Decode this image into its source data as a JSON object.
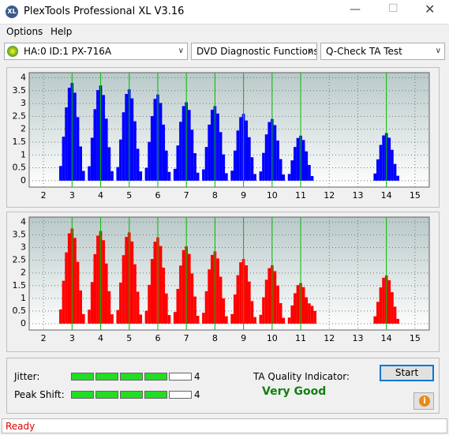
{
  "window": {
    "title": "PlexTools Professional XL V3.16"
  },
  "menu": [
    "Options",
    "Help"
  ],
  "toolbar": {
    "drive": "HA:0 ID:1  PX-716A",
    "function": "DVD Diagnostic Functions",
    "test": "Q-Check TA Test"
  },
  "chart_data": [
    {
      "type": "bar",
      "color": "#0000ff",
      "grid": true,
      "x": [
        2.5,
        2.6,
        2.7,
        2.8,
        2.9,
        3,
        3.1,
        3.2,
        3.3,
        3.4,
        3.5,
        3.6,
        3.7,
        3.8,
        3.9,
        4,
        4.1,
        4.2,
        4.3,
        4.4,
        4.5,
        4.6,
        4.7,
        4.8,
        4.9,
        5,
        5.1,
        5.2,
        5.3,
        5.4,
        5.5,
        5.6,
        5.7,
        5.8,
        5.9,
        6,
        6.1,
        6.2,
        6.3,
        6.4,
        6.5,
        6.6,
        6.7,
        6.8,
        6.9,
        7,
        7.1,
        7.2,
        7.3,
        7.4,
        7.5,
        7.6,
        7.7,
        7.8,
        7.9,
        8,
        8.1,
        8.2,
        8.3,
        8.4,
        8.5,
        8.6,
        8.7,
        8.8,
        8.9,
        9,
        9.1,
        9.2,
        9.3,
        9.4,
        9.5,
        9.6,
        9.7,
        9.8,
        9.9,
        10,
        10.1,
        10.2,
        10.3,
        10.4,
        10.5,
        10.6,
        10.7,
        10.8,
        10.9,
        11,
        11.1,
        11.2,
        11.3,
        11.4,
        11.5,
        13.5,
        13.6,
        13.7,
        13.8,
        13.9,
        14,
        14.1,
        14.2,
        14.3,
        14.4,
        14.5
      ],
      "values": [
        0,
        0.57,
        1.71,
        2.85,
        3.61,
        3.8,
        3.42,
        2.47,
        1.33,
        0.38,
        0,
        0.56,
        1.67,
        2.78,
        3.52,
        3.7,
        3.33,
        2.41,
        1.3,
        0.37,
        0,
        0.53,
        1.6,
        2.66,
        3.37,
        3.55,
        3.2,
        2.31,
        1.24,
        0.36,
        0,
        0.5,
        1.51,
        2.51,
        3.18,
        3.35,
        3.02,
        2.18,
        1.17,
        0.34,
        0,
        0.46,
        1.37,
        2.29,
        2.9,
        3.05,
        2.75,
        1.98,
        1.07,
        0.31,
        0,
        0.44,
        1.31,
        2.18,
        2.76,
        2.9,
        2.61,
        1.89,
        1.02,
        0.29,
        0,
        0.39,
        1.17,
        1.95,
        2.47,
        2.6,
        2.34,
        1.69,
        0.91,
        0.26,
        0,
        0.36,
        1.08,
        1.8,
        2.28,
        2.4,
        2.16,
        1.56,
        0.84,
        0.24,
        0,
        0.26,
        0.79,
        1.31,
        1.66,
        1.75,
        1.58,
        1.14,
        0.61,
        0.18,
        0,
        0,
        0.28,
        0.83,
        1.39,
        1.76,
        1.85,
        1.67,
        1.2,
        0.65,
        0.19,
        0
      ],
      "xlim": [
        1.5,
        15.5
      ],
      "xticks": [
        2,
        3,
        4,
        5,
        6,
        7,
        8,
        9,
        10,
        11,
        12,
        13,
        14,
        15
      ],
      "ylim": [
        -0.25,
        4.2
      ],
      "yticks": [
        0,
        0.5,
        1,
        1.5,
        2,
        2.5,
        3,
        3.5,
        4
      ],
      "marker_lines": [
        3,
        4,
        5,
        6,
        7,
        8,
        9,
        10,
        11,
        14
      ],
      "marker_color": "#00c000"
    },
    {
      "type": "bar",
      "color": "#ff0000",
      "grid": true,
      "x": [
        2.5,
        2.6,
        2.7,
        2.8,
        2.9,
        3,
        3.1,
        3.2,
        3.3,
        3.4,
        3.5,
        3.6,
        3.7,
        3.8,
        3.9,
        4,
        4.1,
        4.2,
        4.3,
        4.4,
        4.5,
        4.6,
        4.7,
        4.8,
        4.9,
        5,
        5.1,
        5.2,
        5.3,
        5.4,
        5.5,
        5.6,
        5.7,
        5.8,
        5.9,
        6,
        6.1,
        6.2,
        6.3,
        6.4,
        6.5,
        6.6,
        6.7,
        6.8,
        6.9,
        7,
        7.1,
        7.2,
        7.3,
        7.4,
        7.5,
        7.6,
        7.7,
        7.8,
        7.9,
        8,
        8.1,
        8.2,
        8.3,
        8.4,
        8.5,
        8.6,
        8.7,
        8.8,
        8.9,
        9,
        9.1,
        9.2,
        9.3,
        9.4,
        9.5,
        9.6,
        9.7,
        9.8,
        9.9,
        10,
        10.1,
        10.2,
        10.3,
        10.4,
        10.5,
        10.6,
        10.7,
        10.8,
        10.9,
        11,
        11.1,
        11.2,
        11.3,
        11.4,
        11.5,
        11.6,
        13.5,
        13.6,
        13.7,
        13.8,
        13.9,
        14,
        14.1,
        14.2,
        14.3,
        14.4,
        14.5
      ],
      "values": [
        0,
        0.56,
        1.69,
        2.81,
        3.56,
        3.75,
        3.38,
        2.44,
        1.31,
        0.38,
        0,
        0.55,
        1.64,
        2.74,
        3.47,
        3.65,
        3.29,
        2.37,
        1.28,
        0.37,
        0,
        0.54,
        1.62,
        2.7,
        3.42,
        3.6,
        3.24,
        2.34,
        1.26,
        0.36,
        0,
        0.51,
        1.53,
        2.55,
        3.23,
        3.4,
        3.06,
        2.21,
        1.19,
        0.34,
        0,
        0.46,
        1.37,
        2.29,
        2.9,
        3.05,
        2.75,
        1.98,
        1.07,
        0.31,
        0,
        0.43,
        1.28,
        2.14,
        2.71,
        2.85,
        2.57,
        1.85,
        1.0,
        0.29,
        0,
        0.38,
        1.15,
        1.91,
        2.42,
        2.55,
        2.3,
        1.66,
        0.89,
        0.26,
        0,
        0.35,
        1.04,
        1.73,
        2.19,
        2.3,
        2.07,
        1.5,
        0.81,
        0.23,
        0,
        0.24,
        0.72,
        1.2,
        1.52,
        1.6,
        1.44,
        1.04,
        0.8,
        0.7,
        0.5,
        0,
        0,
        0.29,
        0.86,
        1.43,
        1.81,
        1.9,
        1.71,
        1.24,
        0.67,
        0.19,
        0
      ],
      "xlim": [
        1.5,
        15.5
      ],
      "xticks": [
        2,
        3,
        4,
        5,
        6,
        7,
        8,
        9,
        10,
        11,
        12,
        13,
        14,
        15
      ],
      "ylim": [
        -0.25,
        4.2
      ],
      "yticks": [
        0,
        0.5,
        1,
        1.5,
        2,
        2.5,
        3,
        3.5,
        4
      ],
      "marker_lines": [
        3,
        4,
        5,
        6,
        7,
        8,
        9,
        10,
        11,
        14
      ],
      "marker_color": "#00c000"
    }
  ],
  "quality": {
    "jitter": {
      "label": "Jitter:",
      "value": 4
    },
    "peak_shift": {
      "label": "Peak Shift:",
      "value": 4
    },
    "indicator_label": "TA Quality Indicator:",
    "indicator_value": "Very Good"
  },
  "buttons": {
    "start": "Start"
  },
  "status": "Ready"
}
